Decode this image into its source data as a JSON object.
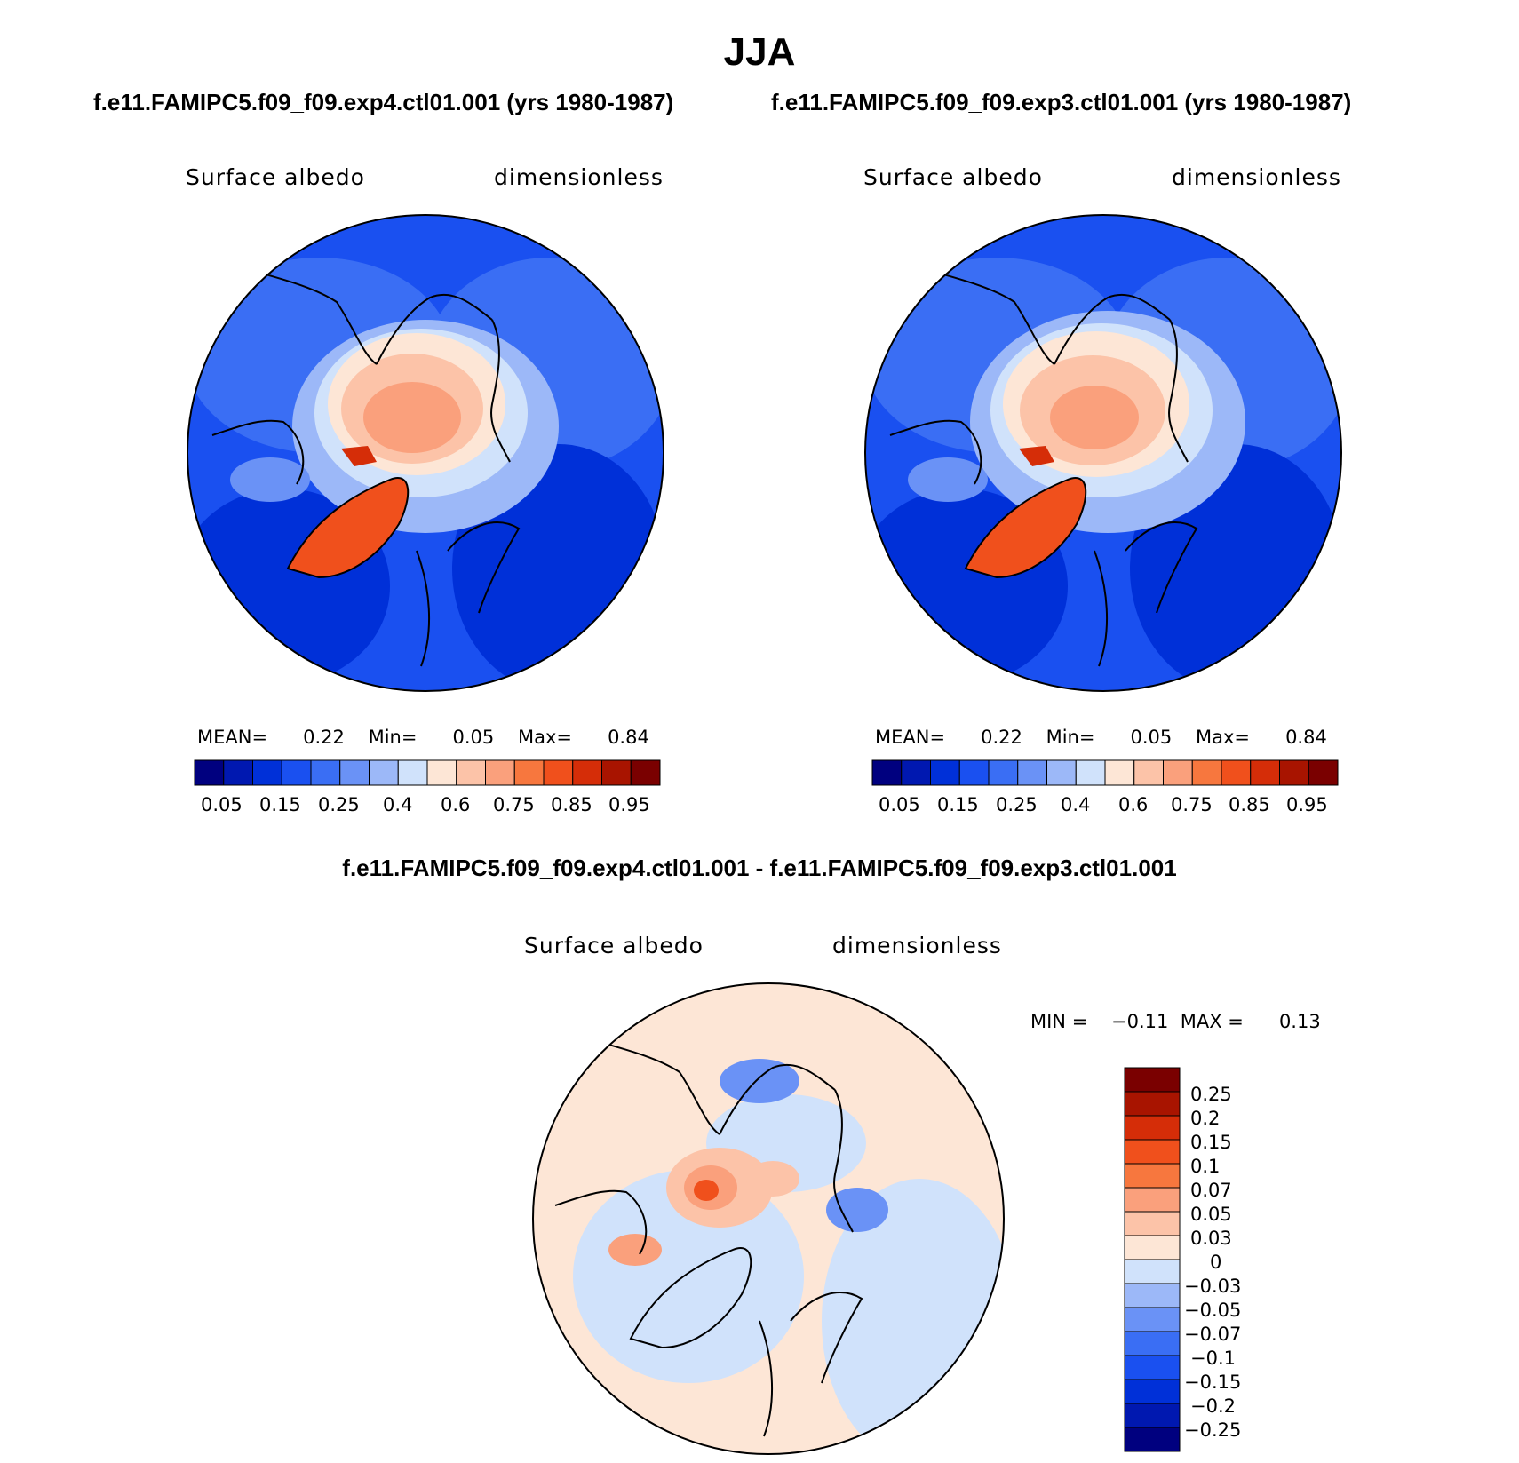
{
  "title": "JJA",
  "case1_title": "f.e11.FAMIPC5.f09_f09.exp4.ctl01.001 (yrs 1980-1987)",
  "case2_title": "f.e11.FAMIPC5.f09_f09.exp3.ctl01.001 (yrs 1980-1987)",
  "diff_title": "f.e11.FAMIPC5.f09_f09.exp4.ctl01.001 - f.e11.FAMIPC5.f09_f09.exp3.ctl01.001",
  "panels": [
    {
      "variable": "Surface albedo",
      "units": "dimensionless",
      "stats": {
        "mean_label": "MEAN=",
        "mean": "0.22",
        "min_label": "Min=",
        "min": "0.05",
        "max_label": "Max=",
        "max": "0.84"
      }
    },
    {
      "variable": "Surface albedo",
      "units": "dimensionless",
      "stats": {
        "mean_label": "MEAN=",
        "mean": "0.22",
        "min_label": "Min=",
        "min": "0.05",
        "max_label": "Max=",
        "max": "0.84"
      }
    },
    {
      "variable": "Surface albedo",
      "units": "dimensionless",
      "stats": {
        "min_label": "MIN =",
        "min": "−0.11",
        "max_label": "MAX =",
        "max": "0.13"
      }
    }
  ],
  "colorbar_abs": {
    "colors": [
      "#00007f",
      "#0018b0",
      "#0030d8",
      "#1a50f0",
      "#3a6ef4",
      "#6a92f6",
      "#9cb8f8",
      "#d0e2fb",
      "#fde6d6",
      "#fcc3a8",
      "#faa07c",
      "#f7773e",
      "#f0501c",
      "#d52d08",
      "#a81400",
      "#7a0000"
    ],
    "tick_labels": [
      "0.05",
      "0.15",
      "0.25",
      "0.4",
      "0.6",
      "0.75",
      "0.85",
      "0.95"
    ]
  },
  "colorbar_diff": {
    "colors": [
      "#00007f",
      "#0018b0",
      "#0030d8",
      "#1a50f0",
      "#3a6ef4",
      "#6a92f6",
      "#9cb8f8",
      "#d0e2fb",
      "#fde6d6",
      "#fcc3a8",
      "#faa07c",
      "#f7773e",
      "#f0501c",
      "#d52d08",
      "#a81400",
      "#7a0000"
    ],
    "tick_labels": [
      "0.25",
      "0.2",
      "0.15",
      "0.1",
      "0.07",
      "0.05",
      "0.03",
      "0",
      "−0.03",
      "−0.05",
      "−0.07",
      "−0.1",
      "−0.15",
      "−0.2",
      "−0.25"
    ]
  }
}
